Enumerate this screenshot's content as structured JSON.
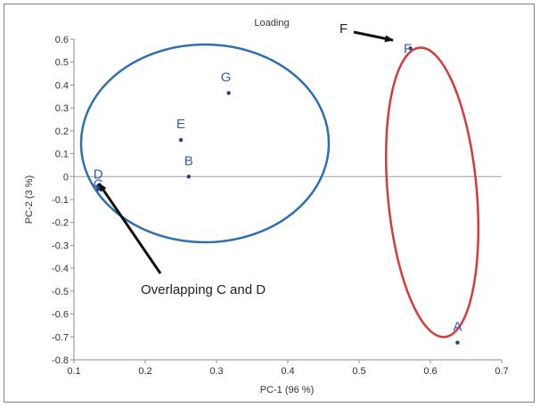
{
  "chart_data": {
    "type": "scatter",
    "title": "Loading",
    "xlabel": "PC-1 (96 %)",
    "ylabel": "PC-2 (3 %)",
    "xlim": [
      0.1,
      0.7
    ],
    "ylim": [
      -0.8,
      0.6
    ],
    "xticks": [
      "0.1",
      "0.2",
      "0.3",
      "0.4",
      "0.5",
      "0.6",
      "0.7"
    ],
    "yticks": [
      "0.6",
      "0.5",
      "0.4",
      "0.3",
      "0.2",
      "0.1",
      "0",
      "-0.1",
      "-0.2",
      "-0.3",
      "-0.4",
      "-0.5",
      "-0.6",
      "-0.7",
      "-0.8"
    ],
    "points": [
      {
        "label": "A",
        "x": 0.638,
        "y": -0.725
      },
      {
        "label": "B",
        "x": 0.261,
        "y": 0.0
      },
      {
        "label": "C",
        "x": 0.134,
        "y": -0.055
      },
      {
        "label": "D",
        "x": 0.134,
        "y": -0.04
      },
      {
        "label": "E",
        "x": 0.25,
        "y": 0.16
      },
      {
        "label": "F",
        "x": 0.572,
        "y": 0.56
      },
      {
        "label": "G",
        "x": 0.317,
        "y": 0.365
      }
    ],
    "zero_line": true,
    "grid": false,
    "colors": {
      "point": "#1f3e8c",
      "label": "#3b5ba5",
      "circle_group": "#2e6fb0",
      "ellipse_group": "#d63a3a",
      "zero_line": "#9e9e9e",
      "arrow": "#111111"
    },
    "annotations": [
      {
        "text": "Overlapping C and D",
        "target_x": 0.135,
        "target_y": -0.03
      },
      {
        "text": "F",
        "target_x": 0.555,
        "target_y": 0.58
      }
    ]
  }
}
